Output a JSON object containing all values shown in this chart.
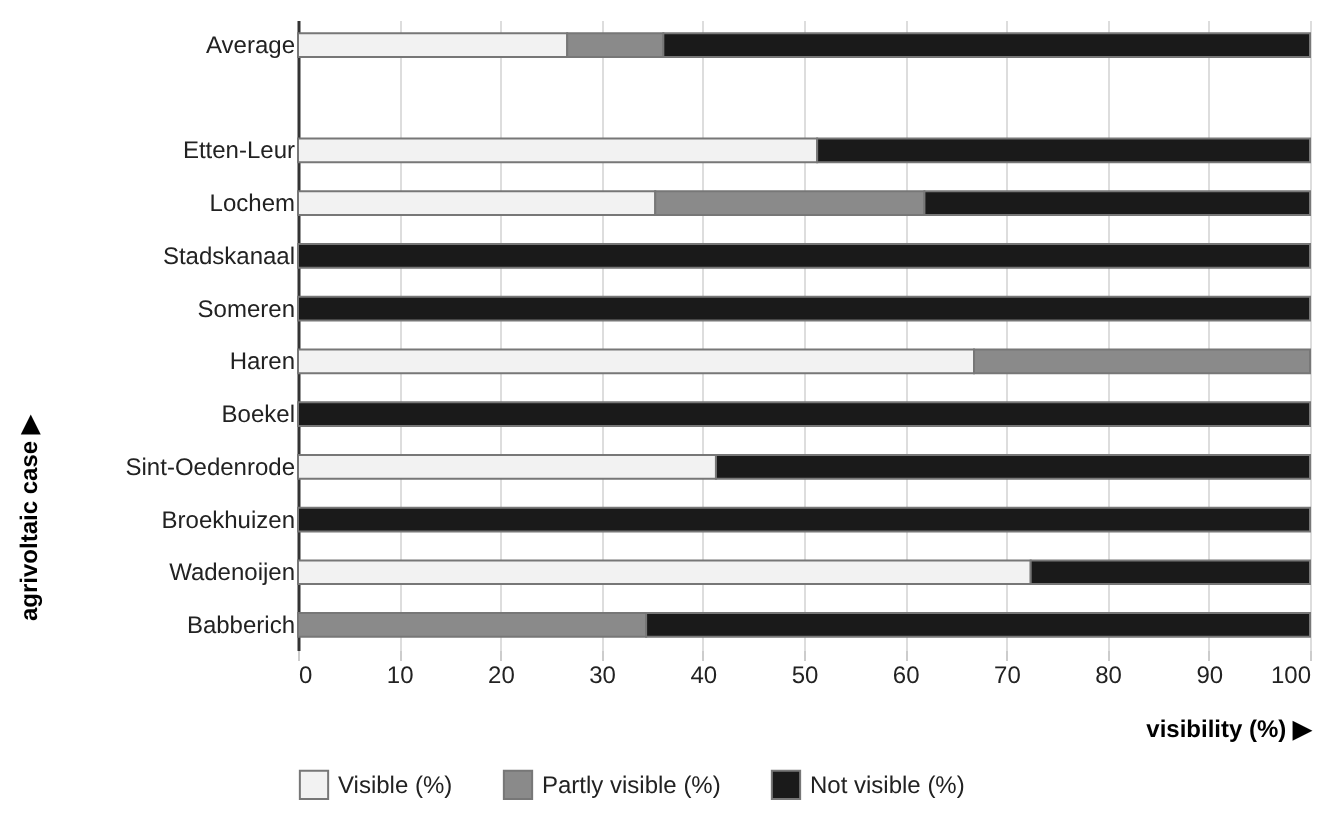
{
  "chart_data": {
    "type": "bar",
    "orientation": "horizontal",
    "stacked": true,
    "categories": [
      "Average",
      null,
      "Etten-Leur",
      "Lochem",
      "Stadskanaal",
      "Someren",
      "Haren",
      "Boekel",
      "Sint-Oedenrode",
      "Broekhuizen",
      "Wadenoijen",
      "Babberich"
    ],
    "series": [
      {
        "name": "Visible (%)",
        "color": "#f2f2f2",
        "values": [
          26.6,
          null,
          51.3,
          35.3,
          0,
          0,
          66.8,
          0,
          41.3,
          0,
          72.4,
          0
        ]
      },
      {
        "name": "Partly visible (%)",
        "color": "#8a8a8a",
        "values": [
          9.5,
          null,
          0,
          26.6,
          0,
          0,
          33.2,
          0,
          0,
          0,
          0,
          34.4
        ]
      },
      {
        "name": "Not visible (%)",
        "color": "#1a1a1a",
        "values": [
          63.9,
          null,
          48.7,
          38.1,
          100,
          100,
          0,
          100,
          58.7,
          100,
          27.6,
          65.6
        ]
      }
    ],
    "xlabel": "visibility (%) ▶",
    "ylabel": "agrivoltaic case ▶",
    "xlim": [
      0,
      100
    ],
    "xticks": [
      0,
      10,
      20,
      30,
      40,
      50,
      60,
      70,
      80,
      90,
      100
    ],
    "grid": "x",
    "legend": "bottom"
  }
}
